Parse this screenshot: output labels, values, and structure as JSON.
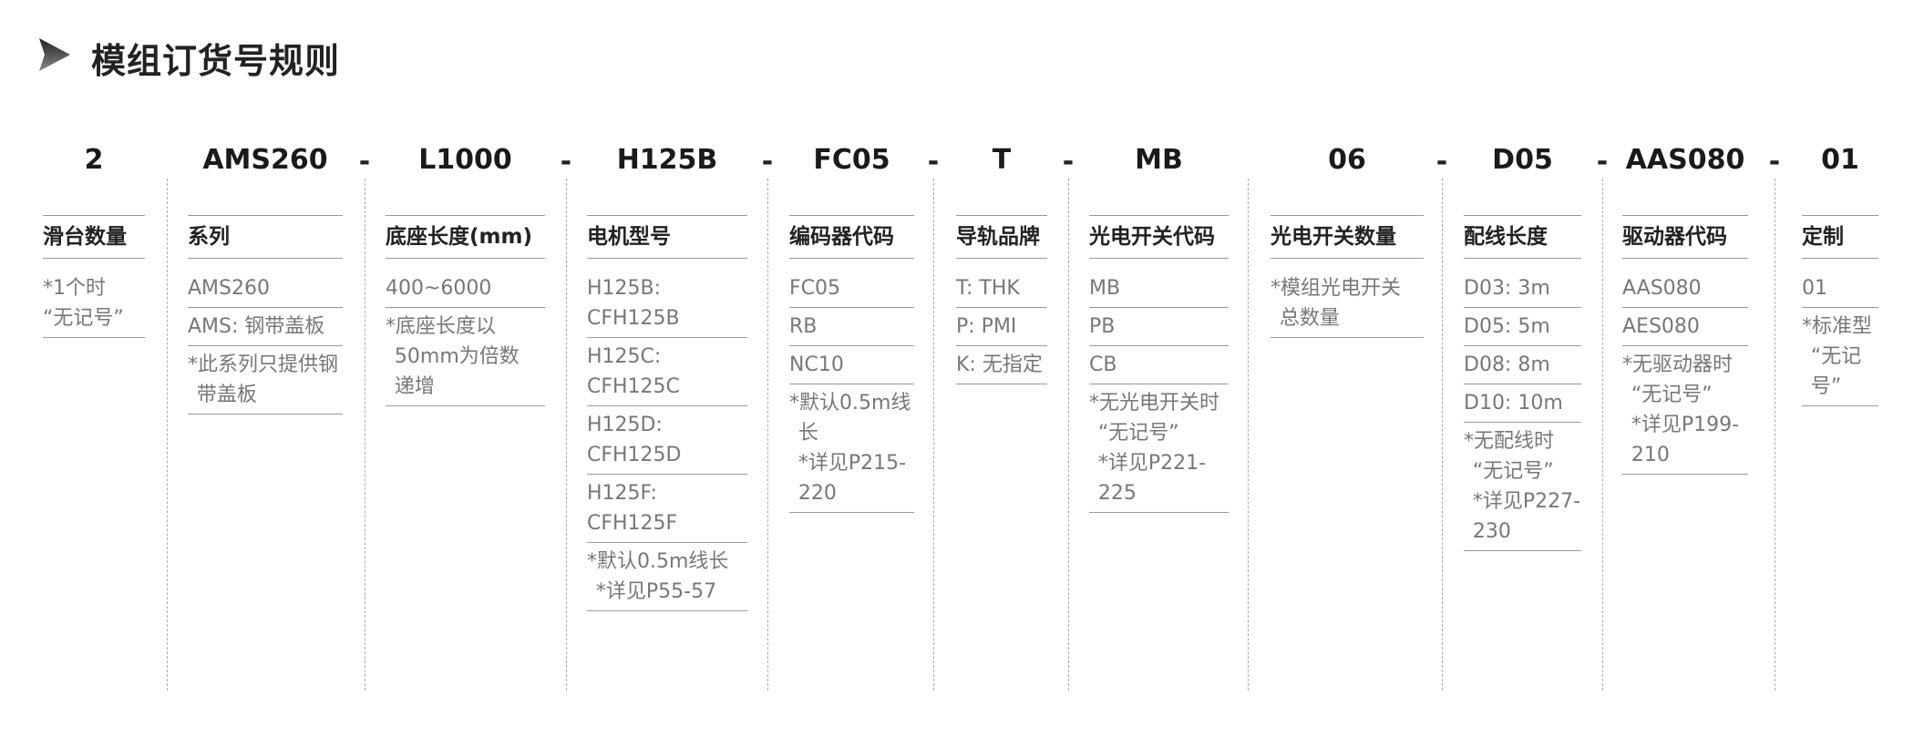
{
  "title": "模组订货号规则",
  "columns": [
    {
      "code": "2",
      "dash": false,
      "label": "滑台数量",
      "rows": [
        "*1个时\n“无记号”"
      ]
    },
    {
      "code": "AMS260",
      "dash": false,
      "label": "系列",
      "rows": [
        "AMS260",
        "AMS: 钢带盖板",
        "*此系列只提供钢\n带盖板"
      ]
    },
    {
      "code": "L1000",
      "dash": true,
      "label": "底座长度(mm)",
      "rows": [
        "400~6000",
        "*底座长度以\n50mm为倍数\n递增"
      ]
    },
    {
      "code": "H125B",
      "dash": true,
      "label": "电机型号",
      "rows": [
        "H125B: CFH125B",
        "H125C: CFH125C",
        "H125D: CFH125D",
        "H125F: CFH125F",
        "*默认0.5m线长\n*详见P55-57"
      ]
    },
    {
      "code": "FC05",
      "dash": true,
      "label": "编码器代码",
      "rows": [
        "FC05",
        "RB",
        "NC10",
        "*默认0.5m线\n长\n*详见P215-\n220"
      ]
    },
    {
      "code": "T",
      "dash": true,
      "label": "导轨品牌",
      "rows": [
        "T: THK",
        "P: PMI",
        "K: 无指定"
      ]
    },
    {
      "code": "MB",
      "dash": true,
      "label": "光电开关代码",
      "rows": [
        "MB",
        "PB",
        "CB",
        "*无光电开关时\n“无记号”\n*详见P221-\n225"
      ]
    },
    {
      "code": "06",
      "dash": false,
      "label": "光电开关数量",
      "rows": [
        "*模组光电开关\n总数量"
      ]
    },
    {
      "code": "D05",
      "dash": true,
      "label": "配线长度",
      "rows": [
        "D03: 3m",
        "D05: 5m",
        "D08: 8m",
        "D10: 10m",
        "*无配线时\n“无记号”\n*详见P227-\n230"
      ]
    },
    {
      "code": "AAS080",
      "dash": true,
      "label": "驱动器代码",
      "rows": [
        "AAS080",
        "AES080",
        "*无驱动器时\n“无记号”\n*详见P199-\n210"
      ]
    },
    {
      "code": "01",
      "dash": true,
      "label": "定制",
      "rows": [
        "01",
        "*标准型\n“无记号”"
      ]
    }
  ]
}
